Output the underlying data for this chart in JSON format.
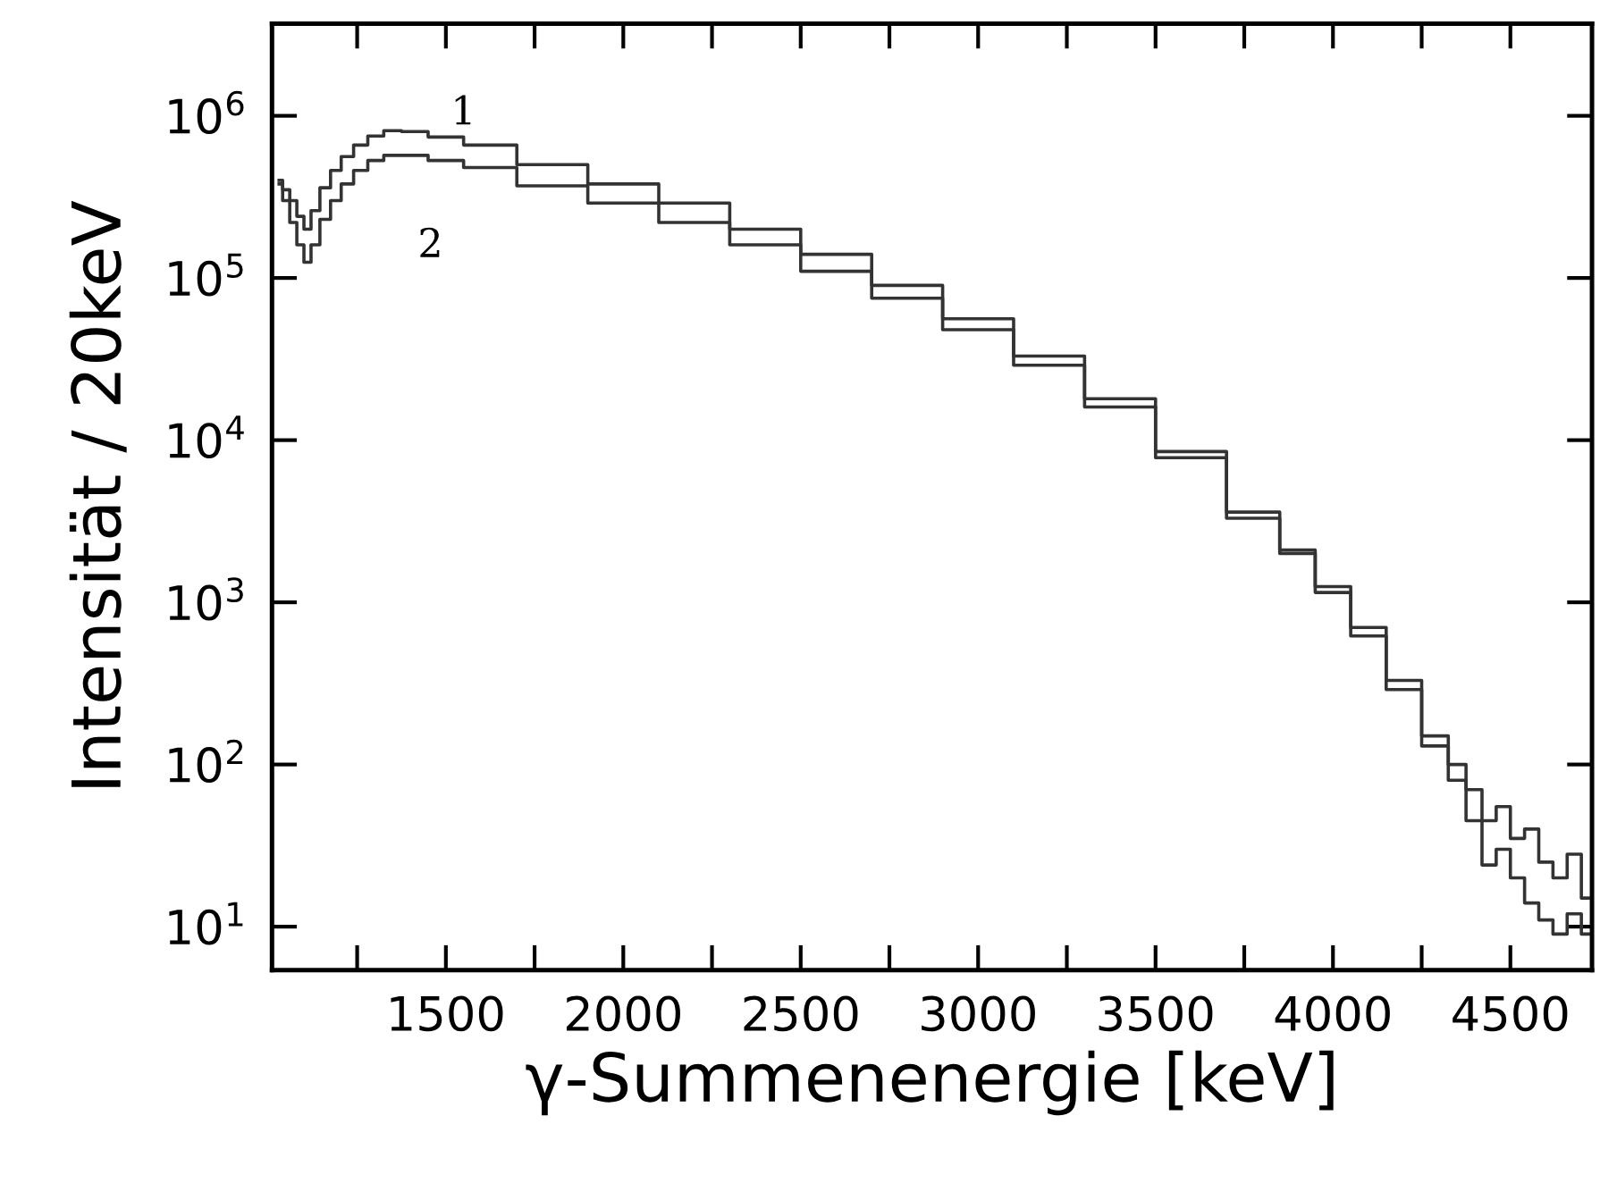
{
  "chart_data": {
    "type": "step",
    "xlabel": "γ-Summenenergie [keV]",
    "ylabel": "Intensität / 20keV",
    "log": "y",
    "grid": false,
    "legend": false,
    "line_style": "solid",
    "marker": "none",
    "xlim": [
      1010,
      4730
    ],
    "ylim": [
      5.4,
      3700000
    ],
    "xticks": [
      {
        "value": 1250,
        "label": null
      },
      1500,
      {
        "value": 1750,
        "label": null
      },
      2000,
      {
        "value": 2250,
        "label": null
      },
      2500,
      {
        "value": 2750,
        "label": null
      },
      3000,
      {
        "value": 3250,
        "label": null
      },
      3500,
      {
        "value": 3750,
        "label": null
      },
      4000,
      {
        "value": 4250,
        "label": null
      },
      4500
    ],
    "yticks": [
      {
        "value": 10,
        "label": "10$^{1}$"
      },
      {
        "value": 100,
        "label": "10$^{2}$"
      },
      {
        "value": 1000,
        "label": "10$^{3}$"
      },
      {
        "value": 10000,
        "label": "10$^{4}$"
      },
      {
        "value": 100000,
        "label": "10$^{5}$"
      },
      {
        "value": 1000000,
        "label": "10$^{6}$"
      }
    ],
    "x": [
      1030,
      1050,
      1070,
      1090,
      1110,
      1130,
      1160,
      1190,
      1220,
      1260,
      1300,
      1350,
      1400,
      1500,
      1600,
      1800,
      2000,
      2200,
      2400,
      2600,
      2800,
      3000,
      3200,
      3400,
      3600,
      3800,
      3900,
      4000,
      4100,
      4200,
      4300,
      4350,
      4400,
      4440,
      4480,
      4520,
      4560,
      4600,
      4640,
      4680,
      4720
    ],
    "series": [
      {
        "color": "#333333",
        "values": [
          400000,
          350000,
          300000,
          240000,
          200000,
          260000,
          360000,
          460000,
          560000,
          660000,
          750000,
          810000,
          800000,
          740000,
          660000,
          500000,
          380000,
          290000,
          200000,
          140000,
          90000,
          56000,
          33000,
          18000,
          8500,
          3600,
          2100,
          1250,
          700,
          330,
          150,
          100,
          70,
          45,
          55,
          35,
          40,
          25,
          20,
          28,
          15
        ]
      },
      {
        "color": "#333333",
        "values": [
          380000,
          300000,
          220000,
          160000,
          125000,
          160000,
          230000,
          300000,
          380000,
          460000,
          530000,
          570000,
          570000,
          530000,
          480000,
          370000,
          290000,
          220000,
          160000,
          110000,
          75000,
          48000,
          29000,
          16000,
          7800,
          3300,
          2000,
          1150,
          620,
          290,
          130,
          80,
          45,
          24,
          30,
          20,
          14,
          11,
          9,
          12,
          9
        ]
      }
    ],
    "annotations": [
      "1",
      "2"
    ]
  }
}
